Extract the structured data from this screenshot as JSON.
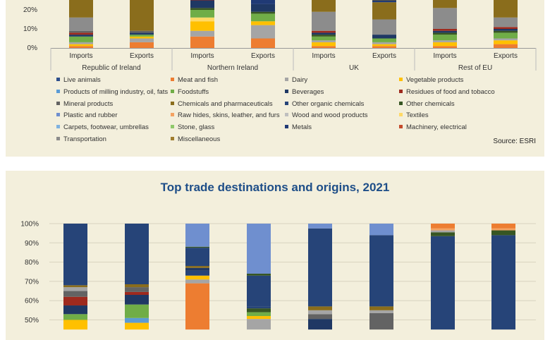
{
  "top_chart": {
    "chart_data": {
      "type": "bar",
      "stacked": true,
      "groups": [
        "Republic of Ireland",
        "Northern Ireland",
        "UK",
        "Rest of EU"
      ],
      "categories": [
        "Imports",
        "Exports"
      ],
      "y_ticks": [
        "0%",
        "10%",
        "20%"
      ],
      "legend": [
        {
          "name": "Live animals",
          "color": "#2e4f8c"
        },
        {
          "name": "Meat and fish",
          "color": "#ed7d31"
        },
        {
          "name": "Dairy",
          "color": "#a5a5a5"
        },
        {
          "name": "Vegetable products",
          "color": "#ffc000"
        },
        {
          "name": "Products of milling industry, oil, fats",
          "color": "#5b9bd5"
        },
        {
          "name": "Foodstuffs",
          "color": "#70ad47"
        },
        {
          "name": "Beverages",
          "color": "#1f3864"
        },
        {
          "name": "Residues of food and tobacco",
          "color": "#9e2a1e"
        },
        {
          "name": "Mineral products",
          "color": "#636363"
        },
        {
          "name": "Chemicals and pharmaceuticals",
          "color": "#8a6d1c"
        },
        {
          "name": "Other organic chemicals",
          "color": "#264478"
        },
        {
          "name": "Other chemicals",
          "color": "#375623"
        },
        {
          "name": "Plastic and rubber",
          "color": "#6f8fcf"
        },
        {
          "name": "Raw hides, skins, leather, and furs",
          "color": "#f4a261"
        },
        {
          "name": "Wood and wood products",
          "color": "#bfbfbf"
        },
        {
          "name": "Textiles",
          "color": "#ffd966"
        },
        {
          "name": "Carpets, footwear, umbrellas",
          "color": "#7fb2e0"
        },
        {
          "name": "Stone, glass",
          "color": "#8fc96a"
        },
        {
          "name": "Metals",
          "color": "#203a75"
        },
        {
          "name": "Machinery, electrical",
          "color": "#c44a2b"
        },
        {
          "name": "Transportation",
          "color": "#8c8c8c"
        },
        {
          "name": "Miscellaneous",
          "color": "#a07d2e"
        }
      ],
      "bars": [
        {
          "group": "Republic of Ireland",
          "category": "Imports",
          "segments": [
            [
              "Meat and fish",
              1
            ],
            [
              "Vegetable products",
              1
            ],
            [
              "Dairy",
              1
            ],
            [
              "Foodstuffs",
              3
            ],
            [
              "Beverages",
              1
            ],
            [
              "Residues of food and tobacco",
              1
            ],
            [
              "Mineral products",
              1
            ],
            [
              "Transportation",
              7
            ],
            [
              "Chemicals and pharmaceuticals",
              12
            ]
          ]
        },
        {
          "group": "Republic of Ireland",
          "category": "Exports",
          "segments": [
            [
              "Meat and fish",
              3
            ],
            [
              "Dairy",
              2
            ],
            [
              "Vegetable products",
              1
            ],
            [
              "Foodstuffs",
              1
            ],
            [
              "Beverages",
              1
            ],
            [
              "Mineral products",
              1
            ],
            [
              "Chemicals and pharmaceuticals",
              19
            ]
          ]
        },
        {
          "group": "Northern Ireland",
          "category": "Imports",
          "segments": [
            [
              "Meat and fish",
              6
            ],
            [
              "Dairy",
              3
            ],
            [
              "Vegetable products",
              5
            ],
            [
              "Textiles",
              2
            ],
            [
              "Foodstuffs",
              4
            ],
            [
              "Other chemicals",
              1
            ],
            [
              "Beverages",
              4
            ],
            [
              "Residues of food and tobacco",
              3
            ]
          ]
        },
        {
          "group": "Northern Ireland",
          "category": "Exports",
          "segments": [
            [
              "Meat and fish",
              5
            ],
            [
              "Dairy",
              7
            ],
            [
              "Vegetable products",
              2
            ],
            [
              "Foodstuffs",
              4
            ],
            [
              "Other chemicals",
              1
            ],
            [
              "Beverages",
              4
            ],
            [
              "Metals",
              4
            ],
            [
              "Residues of food and tobacco",
              2
            ]
          ]
        },
        {
          "group": "UK",
          "category": "Imports",
          "segments": [
            [
              "Meat and fish",
              1
            ],
            [
              "Vegetable products",
              2
            ],
            [
              "Dairy",
              1
            ],
            [
              "Foodstuffs",
              2
            ],
            [
              "Other chemicals",
              1
            ],
            [
              "Beverages",
              1
            ],
            [
              "Residues of food and tobacco",
              1
            ],
            [
              "Transportation",
              10
            ],
            [
              "Chemicals and pharmaceuticals",
              10
            ]
          ]
        },
        {
          "group": "UK",
          "category": "Exports",
          "segments": [
            [
              "Meat and fish",
              1
            ],
            [
              "Vegetable products",
              1
            ],
            [
              "Dairy",
              1
            ],
            [
              "Foodstuffs",
              2
            ],
            [
              "Beverages",
              2
            ],
            [
              "Transportation",
              8
            ],
            [
              "Chemicals and pharmaceuticals",
              9
            ],
            [
              "Metals",
              1
            ],
            [
              "Chemicals and pharmaceuticals",
              4
            ]
          ]
        },
        {
          "group": "Rest of EU",
          "category": "Imports",
          "segments": [
            [
              "Meat and fish",
              1
            ],
            [
              "Vegetable products",
              2
            ],
            [
              "Dairy",
              1
            ],
            [
              "Foodstuffs",
              3
            ],
            [
              "Other chemicals",
              1
            ],
            [
              "Beverages",
              1
            ],
            [
              "Residues of food and tobacco",
              1
            ],
            [
              "Transportation",
              11
            ],
            [
              "Chemicals and pharmaceuticals",
              9
            ]
          ]
        },
        {
          "group": "Rest of EU",
          "category": "Exports",
          "segments": [
            [
              "Meat and fish",
              2
            ],
            [
              "Vegetable products",
              2
            ],
            [
              "Dairy",
              1
            ],
            [
              "Foodstuffs",
              3
            ],
            [
              "Other chemicals",
              1
            ],
            [
              "Beverages",
              1
            ],
            [
              "Residues of food and tobacco",
              1
            ],
            [
              "Transportation",
              5
            ],
            [
              "Chemicals and pharmaceuticals",
              14
            ]
          ]
        }
      ]
    },
    "source": "Source: ESRI"
  },
  "bottom_chart": {
    "title": "Top trade destinations and origins, 2021",
    "chart_data": {
      "type": "bar",
      "stacked": true,
      "y_ticks": [
        "50%",
        "60%",
        "70%",
        "80%",
        "90%",
        "100%"
      ],
      "bars": [
        {
          "segments": [
            [
              45,
              50,
              "#ffc000"
            ],
            [
              50,
              53,
              "#70ad47"
            ],
            [
              53,
              57.5,
              "#1f3864"
            ],
            [
              57.5,
              62,
              "#9e2a1e"
            ],
            [
              62,
              65,
              "#636363"
            ],
            [
              65,
              67,
              "#a5a5a5"
            ],
            [
              67,
              68,
              "#8a6d1c"
            ],
            [
              68,
              100,
              "#264478"
            ]
          ]
        },
        {
          "segments": [
            [
              45,
              48.5,
              "#ffc000"
            ],
            [
              48.5,
              51,
              "#5b9bd5"
            ],
            [
              51,
              58,
              "#70ad47"
            ],
            [
              58,
              63,
              "#1f3864"
            ],
            [
              63,
              64.5,
              "#9e2a1e"
            ],
            [
              64.5,
              67,
              "#636363"
            ],
            [
              67,
              68.5,
              "#8a6d1c"
            ],
            [
              68.5,
              100,
              "#264478"
            ]
          ]
        },
        {
          "segments": [
            [
              45,
              69,
              "#ed7d31"
            ],
            [
              69,
              71,
              "#a5a5a5"
            ],
            [
              71,
              73,
              "#ffc000"
            ],
            [
              73,
              75.5,
              "#264478"
            ],
            [
              75.5,
              77,
              "#1f3864"
            ],
            [
              77,
              78,
              "#8a6d1c"
            ],
            [
              78,
              87.5,
              "#264478"
            ],
            [
              87.5,
              88,
              "#375623"
            ],
            [
              88,
              100,
              "#6f8fcf"
            ]
          ]
        },
        {
          "segments": [
            [
              45,
              50.5,
              "#a5a5a5"
            ],
            [
              50.5,
              52,
              "#ffc000"
            ],
            [
              52,
              54,
              "#70ad47"
            ],
            [
              54,
              56,
              "#375623"
            ],
            [
              56,
              57,
              "#264478"
            ],
            [
              57,
              73,
              "#264478"
            ],
            [
              73,
              74,
              "#375623"
            ],
            [
              74,
              100,
              "#6f8fcf"
            ]
          ]
        },
        {
          "segments": [
            [
              45,
              50.5,
              "#1f3864"
            ],
            [
              50.5,
              53,
              "#636363"
            ],
            [
              53,
              55,
              "#a5a5a5"
            ],
            [
              55,
              57,
              "#8a6d1c"
            ],
            [
              57,
              97.5,
              "#264478"
            ],
            [
              97.5,
              100,
              "#6f8fcf"
            ]
          ]
        },
        {
          "segments": [
            [
              45,
              53.5,
              "#636363"
            ],
            [
              53.5,
              55,
              "#a5a5a5"
            ],
            [
              55,
              57,
              "#8a6d1c"
            ],
            [
              57,
              94,
              "#264478"
            ],
            [
              94,
              100,
              "#6f8fcf"
            ]
          ]
        },
        {
          "segments": [
            [
              45,
              93.5,
              "#264478"
            ],
            [
              93.5,
              95.5,
              "#375623"
            ],
            [
              95.5,
              96.5,
              "#a5a5a5"
            ],
            [
              96.5,
              97.5,
              "#f4a261"
            ],
            [
              97.5,
              100,
              "#ed7d31"
            ]
          ]
        },
        {
          "segments": [
            [
              45,
              94,
              "#264478"
            ],
            [
              94,
              96.5,
              "#375623"
            ],
            [
              96.5,
              97.5,
              "#f4a261"
            ],
            [
              97.5,
              100,
              "#ed7d31"
            ]
          ]
        }
      ]
    }
  }
}
